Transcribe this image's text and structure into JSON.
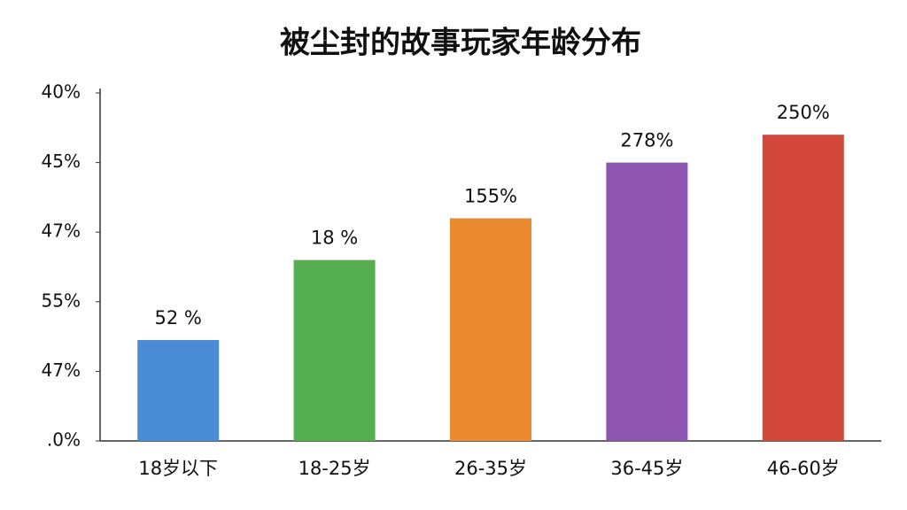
{
  "chart_data": {
    "type": "bar",
    "title": "被尘封的故事玩家年龄分布",
    "categories": [
      "18岁以下",
      "18-25岁",
      "26-35岁",
      "36-45岁",
      "46-60岁"
    ],
    "values": [
      1.45,
      2.6,
      3.2,
      4.0,
      4.4
    ],
    "bar_labels": [
      "52 %",
      "18 %",
      "155%",
      "278%",
      "250%"
    ],
    "colors": [
      "#4a8bd6",
      "#55ae4f",
      "#ec8a2f",
      "#8e55b1",
      "#d4473b"
    ],
    "ylim": [
      0,
      5
    ],
    "yticks": [
      0,
      1,
      2,
      3,
      4,
      5
    ],
    "ytick_labels": [
      ".0%",
      "47%",
      "55%",
      "47%",
      "45%",
      "40%"
    ]
  }
}
